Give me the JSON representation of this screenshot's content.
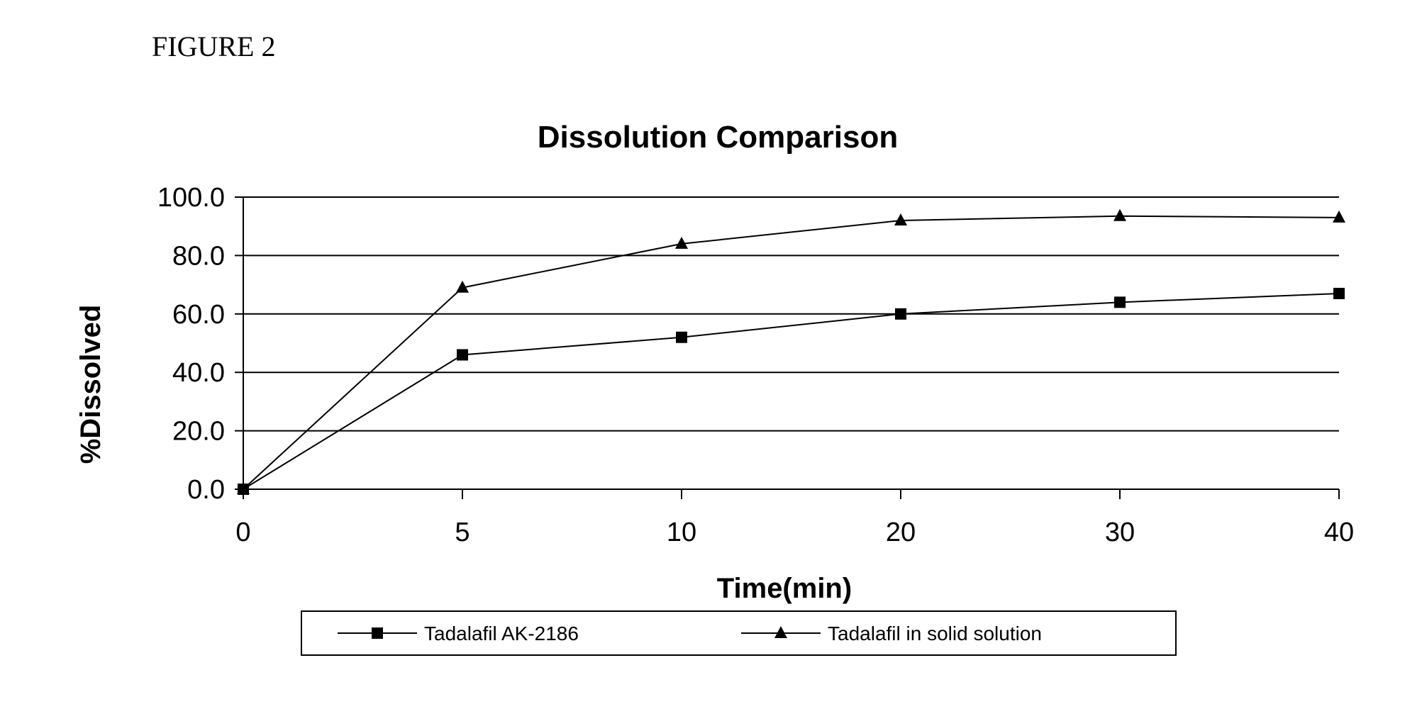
{
  "figure_label": "FIGURE 2",
  "chart_data": {
    "type": "line",
    "title": "Dissolution Comparison",
    "xlabel": "Time(min)",
    "ylabel": "%Dissolved",
    "categories": [
      "0",
      "5",
      "10",
      "20",
      "30",
      "40"
    ],
    "ylim": [
      0,
      100
    ],
    "yticks": [
      "0.0",
      "20.0",
      "40.0",
      "60.0",
      "80.0",
      "100.0"
    ],
    "grid": true,
    "legend_position": "bottom",
    "series": [
      {
        "name": "Tadalafil AK-2186",
        "marker": "square",
        "values": [
          0,
          46,
          52,
          60,
          64,
          67
        ]
      },
      {
        "name": "Tadalafil in solid solution",
        "marker": "triangle",
        "values": [
          0,
          69,
          84,
          92,
          93.5,
          93
        ]
      }
    ],
    "colors": {
      "line": "#000000",
      "grid": "#000000",
      "background": "#ffffff"
    }
  }
}
